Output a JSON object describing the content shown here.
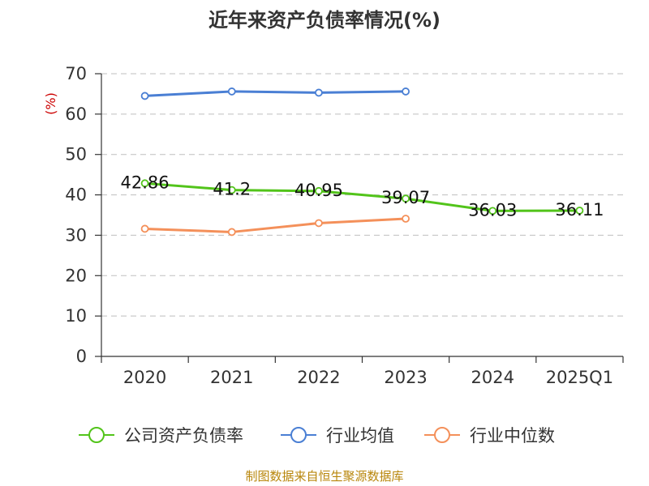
{
  "chart_data": {
    "type": "line",
    "title": "近年来资产负债率情况(%)",
    "y_unit": "(%)",
    "categories": [
      "2020",
      "2021",
      "2022",
      "2023",
      "2024",
      "2025Q1"
    ],
    "ylim": [
      0,
      70
    ],
    "y_ticks": [
      "0",
      "10",
      "20",
      "30",
      "40",
      "50",
      "60",
      "70"
    ],
    "grid": true,
    "legend_position": "bottom",
    "series": [
      {
        "name": "公司资产负债率",
        "color": "#52c41a",
        "values": [
          42.86,
          41.2,
          40.95,
          39.07,
          36.03,
          36.11
        ],
        "labels": [
          "42.86",
          "41.2",
          "40.95",
          "39.07",
          "36.03",
          "36.11"
        ]
      },
      {
        "name": "行业均值",
        "color": "#4a7fd4",
        "values": [
          64.5,
          65.6,
          65.3,
          65.6,
          null,
          null
        ]
      },
      {
        "name": "行业中位数",
        "color": "#f4905a",
        "values": [
          31.6,
          30.8,
          33.0,
          34.1,
          null,
          null
        ]
      }
    ],
    "source": "制图数据来自恒生聚源数据库"
  }
}
